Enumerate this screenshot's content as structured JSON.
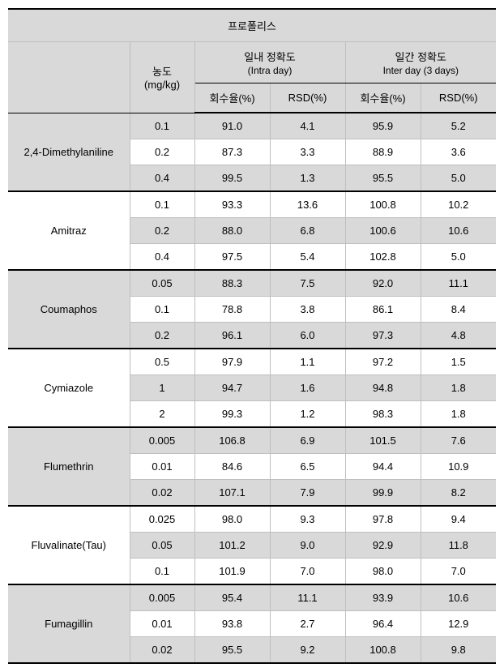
{
  "title": "프로폴리스",
  "headers": {
    "concentration": "농도",
    "concentration_unit": "(mg/kg)",
    "intra_day": "일내 정확도",
    "intra_day_sub": "(Intra day)",
    "inter_day": "일간 정확도",
    "inter_day_sub": "Inter day (3 days)",
    "recovery": "회수율(%)",
    "rsd": "RSD(%)"
  },
  "compounds": [
    {
      "name": "2,4-Dimethylaniline",
      "shaded": true,
      "rows": [
        {
          "conc": "0.1",
          "intra_rec": "91.0",
          "intra_rsd": "4.1",
          "inter_rec": "95.9",
          "inter_rsd": "5.2"
        },
        {
          "conc": "0.2",
          "intra_rec": "87.3",
          "intra_rsd": "3.3",
          "inter_rec": "88.9",
          "inter_rsd": "3.6"
        },
        {
          "conc": "0.4",
          "intra_rec": "99.5",
          "intra_rsd": "1.3",
          "inter_rec": "95.5",
          "inter_rsd": "5.0"
        }
      ]
    },
    {
      "name": "Amitraz",
      "shaded": false,
      "rows": [
        {
          "conc": "0.1",
          "intra_rec": "93.3",
          "intra_rsd": "13.6",
          "inter_rec": "100.8",
          "inter_rsd": "10.2"
        },
        {
          "conc": "0.2",
          "intra_rec": "88.0",
          "intra_rsd": "6.8",
          "inter_rec": "100.6",
          "inter_rsd": "10.6"
        },
        {
          "conc": "0.4",
          "intra_rec": "97.5",
          "intra_rsd": "5.4",
          "inter_rec": "102.8",
          "inter_rsd": "5.0"
        }
      ]
    },
    {
      "name": "Coumaphos",
      "shaded": true,
      "rows": [
        {
          "conc": "0.05",
          "intra_rec": "88.3",
          "intra_rsd": "7.5",
          "inter_rec": "92.0",
          "inter_rsd": "11.1"
        },
        {
          "conc": "0.1",
          "intra_rec": "78.8",
          "intra_rsd": "3.8",
          "inter_rec": "86.1",
          "inter_rsd": "8.4"
        },
        {
          "conc": "0.2",
          "intra_rec": "96.1",
          "intra_rsd": "6.0",
          "inter_rec": "97.3",
          "inter_rsd": "4.8"
        }
      ]
    },
    {
      "name": "Cymiazole",
      "shaded": false,
      "rows": [
        {
          "conc": "0.5",
          "intra_rec": "97.9",
          "intra_rsd": "1.1",
          "inter_rec": "97.2",
          "inter_rsd": "1.5"
        },
        {
          "conc": "1",
          "intra_rec": "94.7",
          "intra_rsd": "1.6",
          "inter_rec": "94.8",
          "inter_rsd": "1.8"
        },
        {
          "conc": "2",
          "intra_rec": "99.3",
          "intra_rsd": "1.2",
          "inter_rec": "98.3",
          "inter_rsd": "1.8"
        }
      ]
    },
    {
      "name": "Flumethrin",
      "shaded": true,
      "rows": [
        {
          "conc": "0.005",
          "intra_rec": "106.8",
          "intra_rsd": "6.9",
          "inter_rec": "101.5",
          "inter_rsd": "7.6"
        },
        {
          "conc": "0.01",
          "intra_rec": "84.6",
          "intra_rsd": "6.5",
          "inter_rec": "94.4",
          "inter_rsd": "10.9"
        },
        {
          "conc": "0.02",
          "intra_rec": "107.1",
          "intra_rsd": "7.9",
          "inter_rec": "99.9",
          "inter_rsd": "8.2"
        }
      ]
    },
    {
      "name": "Fluvalinate(Tau)",
      "shaded": false,
      "rows": [
        {
          "conc": "0.025",
          "intra_rec": "98.0",
          "intra_rsd": "9.3",
          "inter_rec": "97.8",
          "inter_rsd": "9.4"
        },
        {
          "conc": "0.05",
          "intra_rec": "101.2",
          "intra_rsd": "9.0",
          "inter_rec": "92.9",
          "inter_rsd": "11.8"
        },
        {
          "conc": "0.1",
          "intra_rec": "101.9",
          "intra_rsd": "7.0",
          "inter_rec": "98.0",
          "inter_rsd": "7.0"
        }
      ]
    },
    {
      "name": "Fumagillin",
      "shaded": true,
      "rows": [
        {
          "conc": "0.005",
          "intra_rec": "95.4",
          "intra_rsd": "11.1",
          "inter_rec": "93.9",
          "inter_rsd": "10.6"
        },
        {
          "conc": "0.01",
          "intra_rec": "93.8",
          "intra_rsd": "2.7",
          "inter_rec": "96.4",
          "inter_rsd": "12.9"
        },
        {
          "conc": "0.02",
          "intra_rec": "95.5",
          "intra_rsd": "9.2",
          "inter_rec": "100.8",
          "inter_rsd": "9.8"
        }
      ]
    }
  ],
  "colors": {
    "shaded_bg": "#d9d9d9",
    "white_bg": "#ffffff",
    "border_light": "#bfbfbf",
    "border_dark": "#000000"
  },
  "column_widths": {
    "name": 150,
    "conc": 80,
    "data": 93
  }
}
